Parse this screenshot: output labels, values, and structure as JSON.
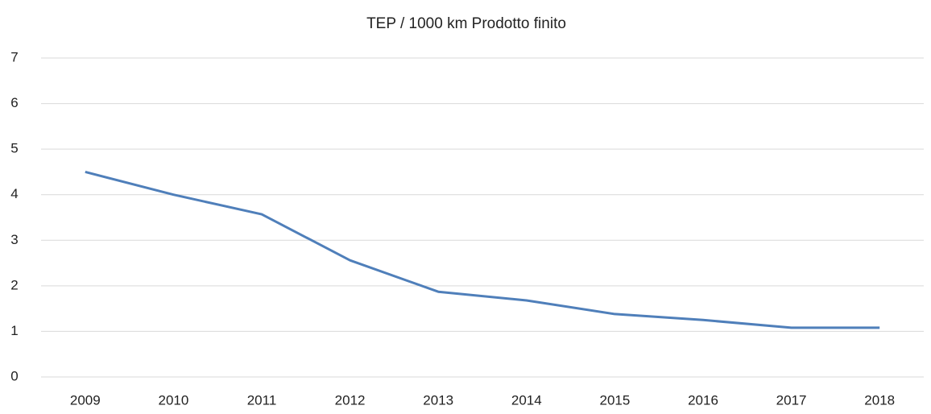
{
  "chart_data": {
    "type": "line",
    "title": "TEP / 1000 km Prodotto finito",
    "categories": [
      "2009",
      "2010",
      "2011",
      "2012",
      "2013",
      "2014",
      "2015",
      "2016",
      "2017",
      "2018"
    ],
    "series": [
      {
        "name": "TEP / 1000 km Prodotto finito",
        "color": "#4f7fba",
        "values": [
          4.5,
          4.0,
          3.57,
          2.56,
          1.87,
          1.68,
          1.38,
          1.25,
          1.08,
          1.08
        ]
      }
    ],
    "ylim": [
      0,
      7
    ],
    "yticks": [
      0,
      1,
      2,
      3,
      4,
      5,
      6,
      7
    ],
    "grid": true
  }
}
